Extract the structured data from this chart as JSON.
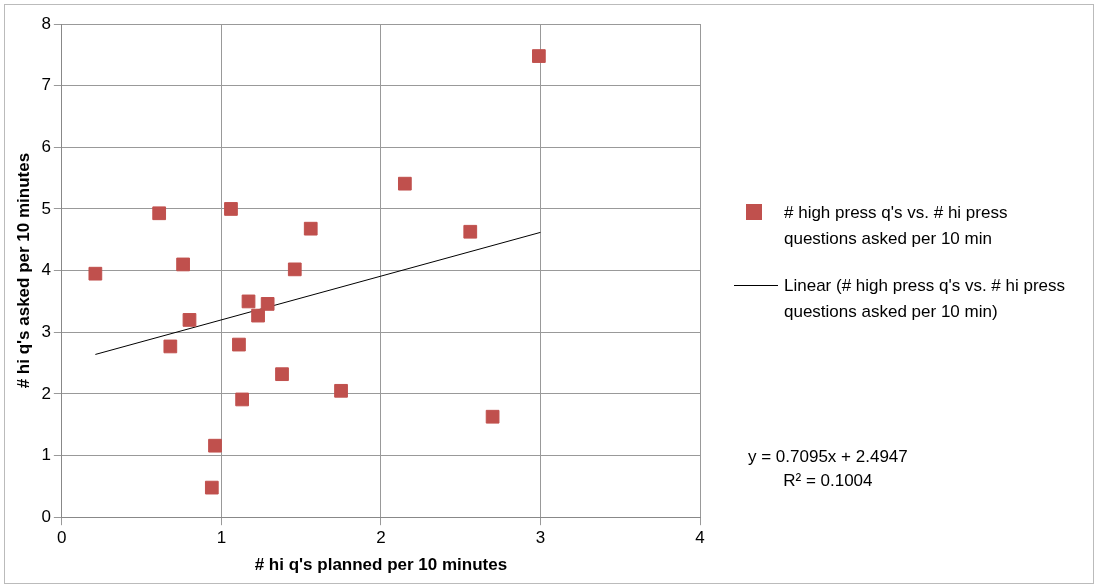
{
  "chart_data": {
    "type": "scatter",
    "xlabel": "# hi q's planned per 10 minutes",
    "ylabel": "# hi q's asked per 10 minutes",
    "x": [
      0.21,
      0.61,
      0.76,
      0.8,
      0.68,
      1.06,
      0.94,
      0.96,
      1.13,
      1.11,
      1.17,
      1.29,
      1.23,
      1.38,
      1.46,
      1.56,
      1.75,
      2.15,
      2.56,
      2.7,
      2.99
    ],
    "series": [
      {
        "name": "# high press q's vs. # hi press questions asked per 10 min",
        "color": "#c0504d",
        "values": [
          3.95,
          4.93,
          4.1,
          3.2,
          2.77,
          5.0,
          0.48,
          1.16,
          1.91,
          2.8,
          3.5,
          3.46,
          3.27,
          2.32,
          4.02,
          4.68,
          2.05,
          5.41,
          4.63,
          1.63,
          7.48
        ]
      },
      {
        "name": "Linear (# high press q's vs. # hi press questions asked per 10 min)",
        "type": "line",
        "color": "#000000",
        "x": [
          0.21,
          3.0
        ],
        "values": [
          2.64,
          4.62
        ],
        "marker": "none"
      }
    ],
    "marker": "square",
    "legend": "right",
    "grid": true,
    "xlim": [
      0,
      4
    ],
    "xticks": [
      0,
      1,
      2,
      3,
      4
    ],
    "ylim": [
      0,
      8
    ],
    "yticks": [
      0,
      1,
      2,
      3,
      4,
      5,
      6,
      7,
      8
    ],
    "annotations": [
      "y = 0.7095x + 2.4947",
      "R² = 0.1004"
    ]
  }
}
